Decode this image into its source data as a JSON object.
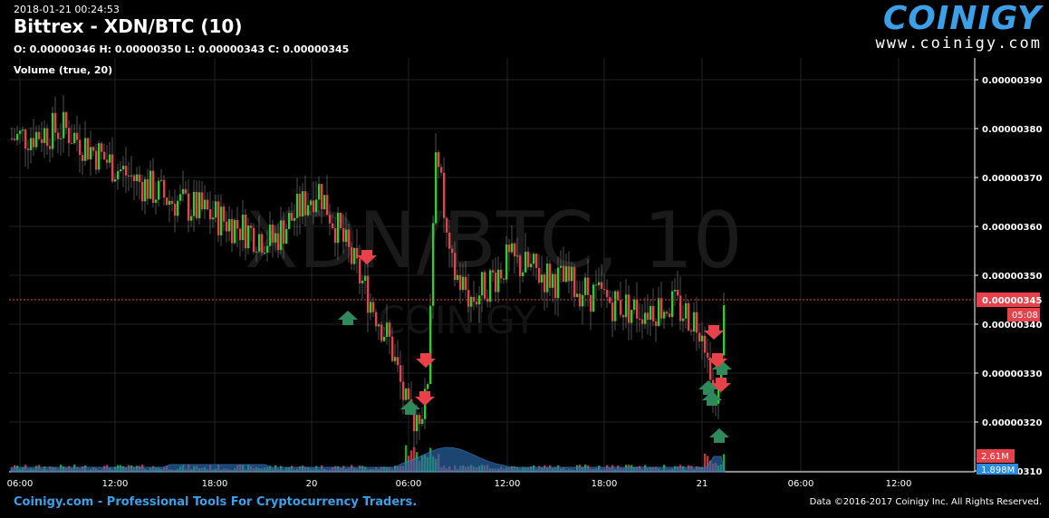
{
  "header": {
    "timestamp": "2018-01-21 00:24:53",
    "title": "Bittrex - XDN/BTC (10)",
    "ohlc": "O: 0.00000346 H: 0.00000350 L: 0.00000343 C: 0.00000345",
    "volume_label": "Volume (true, 20)"
  },
  "logo": {
    "text": "COINIGY",
    "url": "www.coinigy.com"
  },
  "footer": {
    "left": "Coinigy.com - Professional Tools For Cryptocurrency Traders.",
    "right": "Data ©2016-2017 Coinigy Inc. All Rights Reserved."
  },
  "watermark": {
    "pair": "XDN/BTC, 10",
    "brand": "COINIGY"
  },
  "markers": {
    "last_price": "0.00000345",
    "countdown": "05:08",
    "volume_high": "2.61M",
    "volume_last": "1.898M"
  },
  "colors": {
    "up": "#2ecc2e",
    "down": "#e8414a",
    "volume": "#2a6cb0",
    "price_line": "#e8414a",
    "accent": "#3aa0e8"
  },
  "chart_data": {
    "type": "candlestick",
    "y_axis": {
      "min": 3.1e-06,
      "max": 3.9e-06,
      "ticks": [
        "0.00000390",
        "0.00000380",
        "0.00000370",
        "0.00000360",
        "0.00000350",
        "0.00000340",
        "0.00000330",
        "0.00000320",
        "0.00000310"
      ]
    },
    "x_ticks": [
      "06:00",
      "12:00",
      "18:00",
      "20",
      "06:00",
      "12:00",
      "18:00",
      "21",
      "06:00",
      "12:00"
    ],
    "close_path": [
      [
        "06:00",
        3.78e-06
      ],
      [
        "09:00",
        3.8e-06
      ],
      [
        "12:00",
        3.72e-06
      ],
      [
        "15:00",
        3.66e-06
      ],
      [
        "18:00",
        3.62e-06
      ],
      [
        "20:00",
        3.57e-06
      ],
      [
        "20 00:00",
        3.68e-06
      ],
      [
        "02:00",
        3.48e-06
      ],
      [
        "04:00",
        3.36e-06
      ],
      [
        "05:30",
        3.2e-06
      ],
      [
        "06:30",
        3.24e-06
      ],
      [
        "07:30",
        3.78e-06
      ],
      [
        "08:30",
        3.52e-06
      ],
      [
        "10:00",
        3.45e-06
      ],
      [
        "12:00",
        3.53e-06
      ],
      [
        "14:00",
        3.5e-06
      ],
      [
        "16:00",
        3.48e-06
      ],
      [
        "18:00",
        3.45e-06
      ],
      [
        "20:00",
        3.43e-06
      ],
      [
        "22:00",
        3.44e-06
      ],
      [
        "21 00:00",
        3.4e-06
      ],
      [
        "21 00:30",
        3.2e-06
      ],
      [
        "21 01:00",
        3.45e-06
      ]
    ],
    "arrows": {
      "buy": [
        "20 01:00",
        "05:30",
        "21 00:00",
        "21 00:15",
        "21 00:30"
      ],
      "sell": [
        "23:00",
        "06:30",
        "06:45",
        "21 00:00",
        "21 00:10",
        "21 00:20"
      ]
    },
    "volume_sma": "true, 20"
  }
}
